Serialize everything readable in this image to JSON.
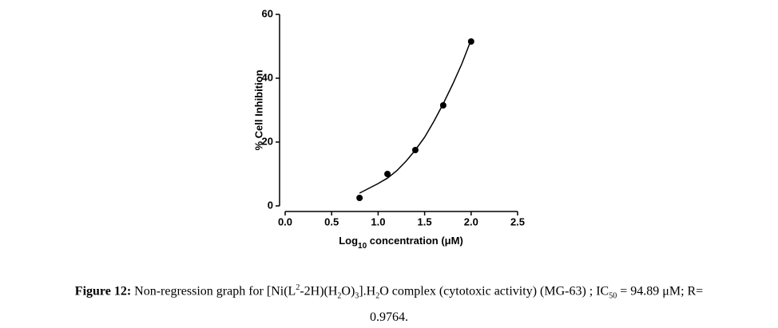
{
  "chart_data": {
    "type": "scatter",
    "ylabel": "% Cell Inhibition",
    "xlabel": [
      "Log",
      "10",
      " concentration (μM)"
    ],
    "xlim": [
      0,
      2.5
    ],
    "ylim": [
      0,
      60
    ],
    "xticks": [
      {
        "value": 0,
        "label": "0.0"
      },
      0.5,
      {
        "value": 1,
        "label": "1.0"
      },
      1.5,
      {
        "value": 2,
        "label": "2.0"
      },
      2.5
    ],
    "yticks": [
      0,
      20,
      40,
      60
    ],
    "series": [
      {
        "type": "scatter",
        "color": "#000000",
        "x": [
          0.8,
          1.1,
          1.4,
          1.7,
          2.0
        ],
        "values": [
          2.5,
          10,
          17.5,
          31.5,
          51.5
        ]
      },
      {
        "type": "line",
        "color": "#000000",
        "x": [
          0.8,
          0.9,
          1.0,
          1.1,
          1.2,
          1.3,
          1.4,
          1.5,
          1.6,
          1.7,
          1.8,
          1.9,
          2.0
        ],
        "values": [
          4,
          5.5,
          7,
          8.7,
          11,
          14,
          17.5,
          21.5,
          26.5,
          32,
          38,
          44.5,
          52
        ]
      }
    ]
  },
  "caption": [
    "Figure 12:",
    " Non-regression graph for [Ni(L",
    "2",
    "-2H)(H",
    "2",
    "O)",
    "3",
    "].H",
    "2",
    "O  complex (cytotoxic activity)  (MG-63) ; IC",
    "50",
    " = 94.89 μM;  R=",
    "0.9764."
  ]
}
